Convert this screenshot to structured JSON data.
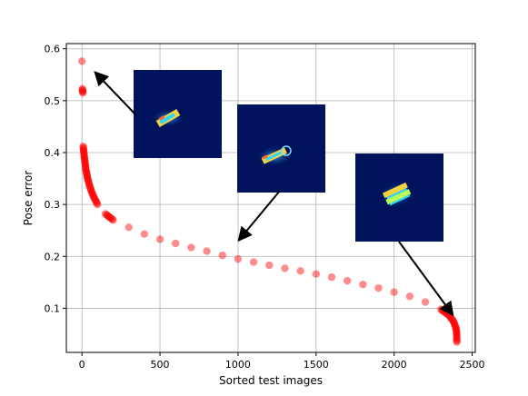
{
  "chart_data": {
    "type": "scatter",
    "title": "",
    "xlabel": "Sorted test images",
    "ylabel": "Pose error",
    "xlim": [
      -100,
      2520
    ],
    "ylim": [
      0.015,
      0.61
    ],
    "xticks": [
      0,
      500,
      1000,
      1500,
      2000,
      2500
    ],
    "yticks": [
      0.1,
      0.2,
      0.3,
      0.4,
      0.5,
      0.6
    ],
    "xtick_labels": [
      "0",
      "500",
      "1000",
      "1500",
      "2000",
      "2500"
    ],
    "ytick_labels": [
      "0.1",
      "0.2",
      "0.3",
      "0.4",
      "0.5",
      "0.6"
    ],
    "grid": true,
    "legend": "none",
    "marker_color": "#ff0000",
    "series": [
      {
        "curve_points": [
          [
            0,
            0.576
          ],
          [
            3,
            0.523
          ],
          [
            6,
            0.515
          ],
          [
            8,
            0.412
          ],
          [
            12,
            0.4
          ],
          [
            18,
            0.385
          ],
          [
            25,
            0.368
          ],
          [
            35,
            0.352
          ],
          [
            50,
            0.335
          ],
          [
            70,
            0.318
          ],
          [
            100,
            0.3
          ],
          [
            150,
            0.282
          ],
          [
            200,
            0.27
          ],
          [
            300,
            0.256
          ],
          [
            400,
            0.243
          ],
          [
            500,
            0.233
          ],
          [
            600,
            0.225
          ],
          [
            700,
            0.217
          ],
          [
            800,
            0.21
          ],
          [
            900,
            0.202
          ],
          [
            1000,
            0.195
          ],
          [
            1100,
            0.189
          ],
          [
            1200,
            0.183
          ],
          [
            1300,
            0.177
          ],
          [
            1400,
            0.172
          ],
          [
            1500,
            0.166
          ],
          [
            1600,
            0.16
          ],
          [
            1700,
            0.153
          ],
          [
            1800,
            0.146
          ],
          [
            1900,
            0.139
          ],
          [
            2000,
            0.131
          ],
          [
            2100,
            0.123
          ],
          [
            2200,
            0.112
          ],
          [
            2300,
            0.098
          ],
          [
            2350,
            0.087
          ],
          [
            2380,
            0.075
          ],
          [
            2395,
            0.063
          ],
          [
            2400,
            0.055
          ],
          [
            2402,
            0.035
          ]
        ]
      }
    ],
    "annotations": [
      {
        "image": "thumbnail-top-left",
        "points_to": [
          25,
          0.566
        ]
      },
      {
        "image": "thumbnail-middle",
        "points_to": [
          990,
          0.203
        ]
      },
      {
        "image": "thumbnail-right",
        "points_to": [
          2385,
          0.078
        ]
      }
    ]
  }
}
